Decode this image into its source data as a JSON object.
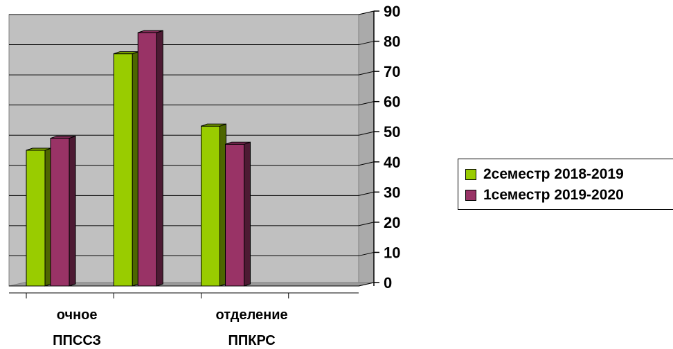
{
  "chart_data": {
    "type": "bar",
    "categories": [
      "очное ППССЗ",
      "",
      "отделение ППКРС",
      ""
    ],
    "category_label_lines": [
      [
        "очное",
        "ППССЗ"
      ],
      [],
      [
        "отделение",
        "ППКРС"
      ],
      []
    ],
    "series": [
      {
        "name": "2семестр 2018-2019",
        "values": [
          45,
          77,
          53,
          null
        ],
        "color": "#99cc00"
      },
      {
        "name": "1семестр 2019-2020",
        "values": [
          49,
          84,
          47,
          null
        ],
        "color": "#993366"
      }
    ],
    "ylim": [
      0,
      90
    ],
    "yticks": [
      "0",
      "10",
      "20",
      "30",
      "40",
      "50",
      "60",
      "70",
      "80",
      "90"
    ],
    "grid": true,
    "legend_position": "right",
    "title": "",
    "xlabel": "",
    "ylabel": ""
  }
}
